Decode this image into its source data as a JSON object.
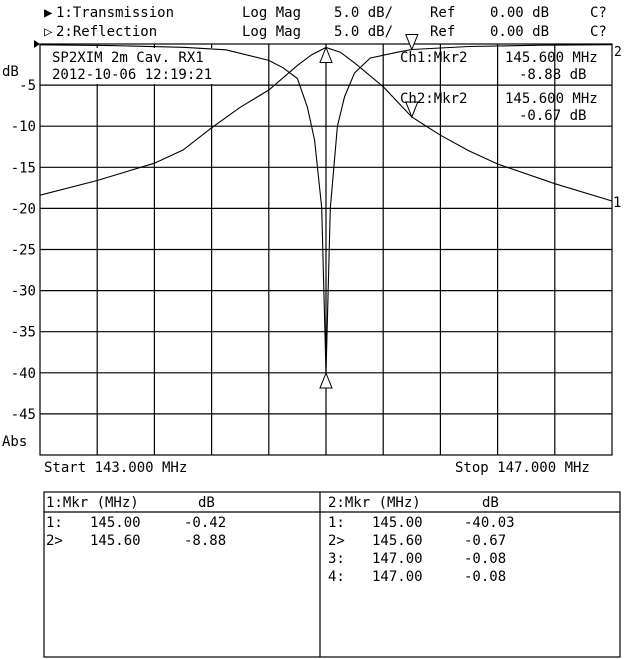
{
  "header": {
    "channels": [
      {
        "marker": "▶",
        "label": "1:Transmission",
        "format": "Log Mag",
        "scale": "5.0 dB/",
        "ref_label": "Ref",
        "ref": "0.00 dB",
        "cal": "C?"
      },
      {
        "marker": "▷",
        "label": "2:Reflection",
        "format": "Log Mag",
        "scale": "5.0 dB/",
        "ref_label": "Ref",
        "ref": "0.00 dB",
        "cal": "C?"
      }
    ]
  },
  "annotation": {
    "title": "SP2XIM 2m Cav. RX1",
    "datetime": "2012-10-06 12:19:21",
    "ch1_marker": {
      "label": "Ch1:Mkr2",
      "freq": "145.600 MHz",
      "value": "-8.88 dB"
    },
    "ch2_marker": {
      "label": "Ch2:Mkr2",
      "freq": "145.600 MHz",
      "value": "-0.67 dB"
    }
  },
  "start_label": "Start 143.000 MHz",
  "stop_label": "Stop 147.000 MHz",
  "chart_data": {
    "type": "line",
    "ylabel": "dB",
    "ybottom_label": "Abs",
    "xlim": [
      143.0,
      147.0
    ],
    "ylim": [
      -50,
      0
    ],
    "yticks": [
      -5,
      -10,
      -15,
      -20,
      -25,
      -30,
      -35,
      -40,
      -45
    ],
    "ytick_labels": [
      "-5",
      "-10",
      "-15",
      "-20",
      "-25",
      "-30",
      "-35",
      "-40",
      "-45"
    ],
    "x_divisions": 10,
    "grid": true,
    "series": [
      {
        "trace_label": "1",
        "points": [
          [
            143.0,
            -18.4
          ],
          [
            143.4,
            -16.6
          ],
          [
            143.8,
            -14.5
          ],
          [
            144.0,
            -12.9
          ],
          [
            144.2,
            -10.2
          ],
          [
            144.4,
            -7.7
          ],
          [
            144.6,
            -5.6
          ],
          [
            144.8,
            -2.6
          ],
          [
            144.9,
            -1.3
          ],
          [
            145.0,
            -0.42
          ],
          [
            145.1,
            -1.0
          ],
          [
            145.2,
            -2.3
          ],
          [
            145.4,
            -5.2
          ],
          [
            145.6,
            -8.88
          ],
          [
            145.8,
            -11.1
          ],
          [
            146.0,
            -13.0
          ],
          [
            146.2,
            -14.6
          ],
          [
            146.6,
            -17.0
          ],
          [
            147.0,
            -19.1
          ]
        ]
      },
      {
        "trace_label": "2",
        "points": [
          [
            143.0,
            -0.1
          ],
          [
            143.5,
            -0.2
          ],
          [
            144.0,
            -0.4
          ],
          [
            144.3,
            -0.7
          ],
          [
            144.6,
            -2.0
          ],
          [
            144.7,
            -2.9
          ],
          [
            144.8,
            -4.2
          ],
          [
            144.87,
            -7.7
          ],
          [
            144.92,
            -11.7
          ],
          [
            144.97,
            -19.9
          ],
          [
            145.0,
            -40.03
          ],
          [
            145.03,
            -20.0
          ],
          [
            145.08,
            -10.0
          ],
          [
            145.13,
            -6.4
          ],
          [
            145.2,
            -3.5
          ],
          [
            145.31,
            -1.7
          ],
          [
            145.5,
            -1.0
          ],
          [
            145.6,
            -0.67
          ],
          [
            146.0,
            -0.3
          ],
          [
            146.5,
            -0.15
          ],
          [
            147.0,
            -0.08
          ]
        ]
      }
    ]
  },
  "marker_tables": [
    {
      "header_mkr": "1:Mkr (MHz)",
      "header_db": "dB",
      "rows": [
        {
          "id": "1:",
          "freq": "145.00",
          "db": "-0.42"
        },
        {
          "id": "2>",
          "freq": "145.60",
          "db": "-8.88"
        }
      ]
    },
    {
      "header_mkr": "2:Mkr (MHz)",
      "header_db": "dB",
      "rows": [
        {
          "id": "1:",
          "freq": "145.00",
          "db": "-40.03"
        },
        {
          "id": "2>",
          "freq": "145.60",
          "db": "-0.67"
        },
        {
          "id": "3:",
          "freq": "147.00",
          "db": "-0.08"
        },
        {
          "id": "4:",
          "freq": "147.00",
          "db": "-0.08"
        }
      ]
    }
  ]
}
